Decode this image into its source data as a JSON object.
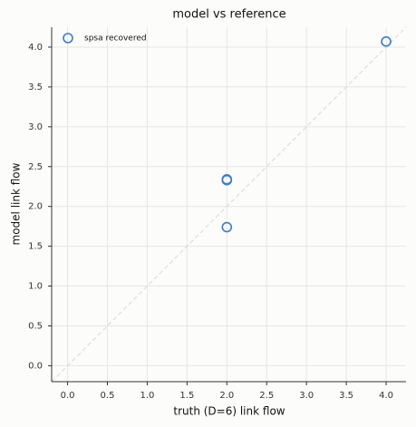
{
  "chart_data": {
    "type": "scatter",
    "title": "model vs reference",
    "x_label": "truth (D=6) link flow",
    "y_label": "model link flow",
    "series": [
      {
        "name": "spsa recovered",
        "color": "#3a7dc9",
        "x": [
          4.0,
          2.0,
          2.0,
          2.0
        ],
        "values": [
          4.07,
          2.34,
          2.33,
          1.74
        ]
      }
    ],
    "xlim": [
      -0.2,
      4.25
    ],
    "ylim": [
      -0.2,
      4.25
    ],
    "xticks": [
      {
        "value": 0,
        "label": "0.0"
      },
      {
        "value": 0.5,
        "label": "0.5"
      },
      {
        "value": 1,
        "label": "1.0"
      },
      {
        "value": 1.5,
        "label": "1.5"
      },
      {
        "value": 2,
        "label": "2.0"
      },
      {
        "value": 2.5,
        "label": "2.5"
      },
      {
        "value": 3,
        "label": "3.0"
      },
      {
        "value": 3.5,
        "label": "3.5"
      },
      {
        "value": 4,
        "label": "4.0"
      }
    ],
    "yticks": [
      {
        "value": 0,
        "label": "0.0"
      },
      {
        "value": 0.5,
        "label": "0.5"
      },
      {
        "value": 1,
        "label": "1.0"
      },
      {
        "value": 1.5,
        "label": "1.5"
      },
      {
        "value": 2,
        "label": "2.0"
      },
      {
        "value": 2.5,
        "label": "2.5"
      },
      {
        "value": 3,
        "label": "3.0"
      },
      {
        "value": 3.5,
        "label": "3.5"
      },
      {
        "value": 4,
        "label": "4.0"
      }
    ],
    "grid": true,
    "legend": "upper left"
  }
}
